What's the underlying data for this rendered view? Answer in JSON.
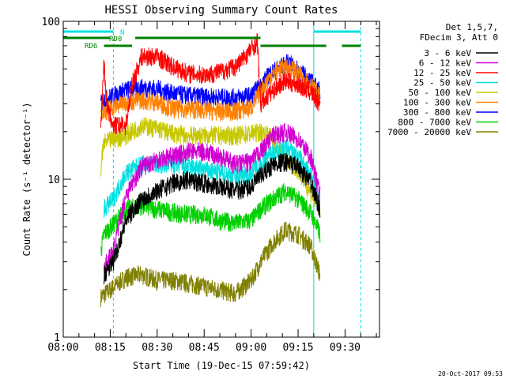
{
  "chart_data": {
    "type": "line",
    "title": "HESSI Observing Summary Count Rates",
    "xlabel": "Start Time (19-Dec-15 07:59:42)",
    "ylabel": "Count Rate (s⁻¹ detector⁻¹)",
    "x_ticks": [
      "08:00",
      "08:15",
      "08:30",
      "08:45",
      "09:00",
      "09:15",
      "09:30"
    ],
    "y_ticks": [
      "1",
      "10",
      "100"
    ],
    "y_scale": "log",
    "x_range_minutes": [
      0,
      101
    ],
    "ylim": [
      1,
      100
    ],
    "grid": false,
    "legend_position": "right",
    "legend_header": [
      "Det 1,5,7,",
      "FDecim 3, Att 0"
    ],
    "footer_date": "20-Oct-2017 09:53",
    "series": [
      {
        "name": "3 - 6 keV",
        "color": "#000000",
        "points": [
          [
            13,
            2.5
          ],
          [
            16,
            3.0
          ],
          [
            20,
            5.5
          ],
          [
            25,
            7.5
          ],
          [
            30,
            8.5
          ],
          [
            35,
            9.5
          ],
          [
            40,
            10
          ],
          [
            45,
            9.5
          ],
          [
            50,
            9.0
          ],
          [
            55,
            8.5
          ],
          [
            60,
            9.0
          ],
          [
            63,
            10.5
          ],
          [
            67,
            12.5
          ],
          [
            71,
            13
          ],
          [
            75,
            12
          ],
          [
            79,
            9.5
          ],
          [
            82,
            6.5
          ]
        ]
      },
      {
        "name": "6 - 12 keV",
        "color": "#d000d0",
        "points": [
          [
            13,
            2.8
          ],
          [
            16,
            3.5
          ],
          [
            20,
            8
          ],
          [
            25,
            12
          ],
          [
            30,
            13.5
          ],
          [
            35,
            14
          ],
          [
            40,
            15
          ],
          [
            45,
            15
          ],
          [
            50,
            14
          ],
          [
            55,
            12.5
          ],
          [
            60,
            13
          ],
          [
            63,
            15
          ],
          [
            67,
            19
          ],
          [
            71,
            20
          ],
          [
            75,
            18
          ],
          [
            79,
            14
          ],
          [
            82,
            8
          ]
        ]
      },
      {
        "name": "12 - 25 keV",
        "color": "#ff0000",
        "points": [
          [
            12,
            22
          ],
          [
            13,
            55
          ],
          [
            14,
            28
          ],
          [
            16,
            22
          ],
          [
            20,
            22
          ],
          [
            22,
            40
          ],
          [
            25,
            60
          ],
          [
            30,
            60
          ],
          [
            35,
            52
          ],
          [
            40,
            47
          ],
          [
            45,
            46
          ],
          [
            50,
            48
          ],
          [
            55,
            52
          ],
          [
            58,
            60
          ],
          [
            62,
            75
          ],
          [
            63,
            30
          ],
          [
            66,
            35
          ],
          [
            69,
            40
          ],
          [
            71,
            42
          ],
          [
            75,
            40
          ],
          [
            79,
            36
          ],
          [
            82,
            30
          ]
        ]
      },
      {
        "name": "25 - 50 keV",
        "color": "#00e0e0",
        "points": [
          [
            13,
            6.5
          ],
          [
            16,
            7.5
          ],
          [
            20,
            11
          ],
          [
            25,
            12.5
          ],
          [
            30,
            12.5
          ],
          [
            35,
            12.5
          ],
          [
            40,
            12
          ],
          [
            45,
            11.5
          ],
          [
            50,
            11
          ],
          [
            55,
            10.5
          ],
          [
            60,
            11
          ],
          [
            63,
            12.5
          ],
          [
            67,
            15
          ],
          [
            71,
            16
          ],
          [
            75,
            14
          ],
          [
            79,
            11
          ],
          [
            82,
            7
          ]
        ]
      },
      {
        "name": "50 - 100 keV",
        "color": "#c8c800",
        "points": [
          [
            12,
            12
          ],
          [
            13,
            17
          ],
          [
            16,
            18
          ],
          [
            20,
            19
          ],
          [
            25,
            22
          ],
          [
            30,
            21
          ],
          [
            35,
            19.5
          ],
          [
            40,
            19
          ],
          [
            45,
            19
          ],
          [
            50,
            19
          ],
          [
            55,
            19
          ],
          [
            60,
            19.5
          ],
          [
            63,
            20
          ],
          [
            66,
            19
          ],
          [
            69,
            15
          ],
          [
            72,
            13
          ],
          [
            75,
            11.5
          ],
          [
            78,
            9
          ],
          [
            82,
            6.5
          ]
        ]
      },
      {
        "name": "100 - 300 keV",
        "color": "#ff8000",
        "points": [
          [
            12,
            27
          ],
          [
            13,
            27
          ],
          [
            16,
            29
          ],
          [
            20,
            31
          ],
          [
            25,
            32
          ],
          [
            30,
            31
          ],
          [
            35,
            28
          ],
          [
            40,
            28
          ],
          [
            45,
            27.5
          ],
          [
            50,
            27
          ],
          [
            55,
            27
          ],
          [
            60,
            28.5
          ],
          [
            63,
            36
          ],
          [
            66,
            45
          ],
          [
            69,
            50
          ],
          [
            72,
            52
          ],
          [
            75,
            47
          ],
          [
            79,
            40
          ],
          [
            82,
            33
          ]
        ]
      },
      {
        "name": "300 - 800 keV",
        "color": "#0000ff",
        "points": [
          [
            12,
            30
          ],
          [
            13,
            32
          ],
          [
            16,
            34
          ],
          [
            20,
            37
          ],
          [
            25,
            38
          ],
          [
            30,
            37.5
          ],
          [
            35,
            35
          ],
          [
            40,
            34
          ],
          [
            45,
            33.5
          ],
          [
            50,
            33
          ],
          [
            55,
            33
          ],
          [
            60,
            34
          ],
          [
            63,
            39
          ],
          [
            66,
            47
          ],
          [
            69,
            51
          ],
          [
            72,
            55
          ],
          [
            75,
            49
          ],
          [
            79,
            42
          ],
          [
            82,
            36
          ]
        ]
      },
      {
        "name": "800 - 7000 keV",
        "color": "#00d000",
        "points": [
          [
            12,
            3.5
          ],
          [
            13,
            4.5
          ],
          [
            16,
            5.2
          ],
          [
            20,
            6.5
          ],
          [
            25,
            6.8
          ],
          [
            30,
            6.5
          ],
          [
            35,
            6.2
          ],
          [
            40,
            6.0
          ],
          [
            45,
            6.0
          ],
          [
            50,
            5.5
          ],
          [
            55,
            5.3
          ],
          [
            60,
            5.5
          ],
          [
            63,
            6.5
          ],
          [
            67,
            7.5
          ],
          [
            71,
            8.5
          ],
          [
            75,
            7.5
          ],
          [
            79,
            6.2
          ],
          [
            82,
            4.5
          ]
        ]
      },
      {
        "name": "7000 - 20000 keV",
        "color": "#808000",
        "points": [
          [
            12,
            1.8
          ],
          [
            15,
            2.0
          ],
          [
            20,
            2.4
          ],
          [
            25,
            2.5
          ],
          [
            30,
            2.3
          ],
          [
            35,
            2.3
          ],
          [
            40,
            2.2
          ],
          [
            45,
            2.1
          ],
          [
            50,
            2.0
          ],
          [
            55,
            1.9
          ],
          [
            60,
            2.3
          ],
          [
            63,
            3.0
          ],
          [
            67,
            4.0
          ],
          [
            71,
            4.8
          ],
          [
            75,
            4.5
          ],
          [
            79,
            3.8
          ],
          [
            82,
            2.5
          ]
        ]
      }
    ],
    "flag_bars": [
      {
        "label": "N",
        "color": "#00e0e0",
        "segments": [
          [
            0,
            16
          ],
          [
            80,
            95
          ]
        ]
      },
      {
        "label": "RD0",
        "color": "#008000",
        "segments": [
          [
            0,
            15
          ],
          [
            23,
            63
          ]
        ]
      },
      {
        "label": "RD6",
        "color": "#008000",
        "segments": [
          [
            13,
            22
          ],
          [
            63,
            84
          ],
          [
            89,
            95
          ]
        ]
      }
    ],
    "vertical_lines": [
      {
        "minute": 0,
        "color": "#00e0e0",
        "style": "solid"
      },
      {
        "minute": 16,
        "color": "#00e0e0",
        "style": "dashed"
      },
      {
        "minute": 80,
        "color": "#00e0e0",
        "style": "solid"
      },
      {
        "minute": 95,
        "color": "#00e0e0",
        "style": "dashed"
      }
    ]
  }
}
